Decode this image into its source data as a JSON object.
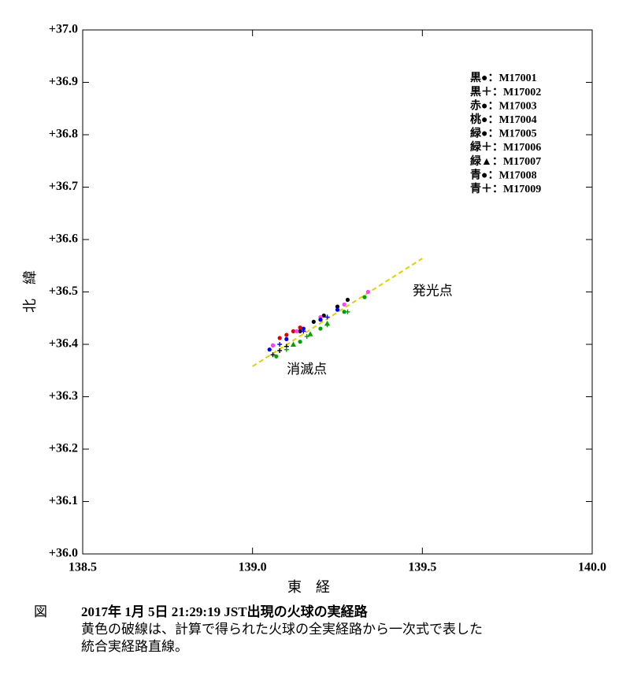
{
  "chart_data": {
    "type": "scatter",
    "x_label": "東　経",
    "y_label": "北　緯",
    "xlim": [
      138.5,
      140.0
    ],
    "ylim": [
      36.0,
      37.0
    ],
    "xticks": [
      138.5,
      {
        "value": 139,
        "label": "139.0"
      },
      139.5,
      {
        "value": 140,
        "label": "140.0"
      }
    ],
    "yticks": [
      {
        "value": 36.0,
        "label": "+36.0"
      },
      {
        "value": 36.1,
        "label": "+36.1"
      },
      {
        "value": 36.2,
        "label": "+36.2"
      },
      {
        "value": 36.3,
        "label": "+36.3"
      },
      {
        "value": 36.4,
        "label": "+36.4"
      },
      {
        "value": 36.5,
        "label": "+36.5"
      },
      {
        "value": 36.6,
        "label": "+36.6"
      },
      {
        "value": 36.7,
        "label": "+36.7"
      },
      {
        "value": 36.8,
        "label": "+36.8"
      },
      {
        "value": 36.9,
        "label": "+36.9"
      },
      {
        "value": 37.0,
        "label": "+37.0"
      }
    ],
    "fit_line": {
      "color": "#e0d000",
      "x": [
        139.0,
        139.5
      ],
      "y": [
        36.358,
        36.564
      ]
    },
    "annotations": [
      {
        "text": "発光点",
        "x": 139.53,
        "y": 36.5
      },
      {
        "text": "消滅点",
        "x": 139.16,
        "y": 36.35
      }
    ],
    "series": [
      {
        "name": "黒●：M17001",
        "color": "#000000",
        "marker": "circle",
        "x": [
          139.14,
          139.18,
          139.21,
          139.25,
          139.28
        ],
        "values": [
          36.425,
          36.443,
          36.455,
          36.472,
          36.485
        ]
      },
      {
        "name": "黒＋：M17002",
        "color": "#000000",
        "marker": "plus",
        "x": [
          139.06,
          139.08,
          139.1
        ],
        "values": [
          36.38,
          36.388,
          36.396
        ]
      },
      {
        "name": "赤●：M17003",
        "color": "#e00000",
        "marker": "circle",
        "x": [
          139.06,
          139.08,
          139.1,
          139.12,
          139.14
        ],
        "values": [
          36.398,
          36.412,
          36.418,
          36.425,
          36.432
        ]
      },
      {
        "name": "桃●：M17004",
        "color": "#ff40ff",
        "marker": "circle",
        "x": [
          139.06,
          139.13,
          139.2,
          139.27,
          139.34
        ],
        "values": [
          36.398,
          36.425,
          36.452,
          36.476,
          36.5
        ]
      },
      {
        "name": "緑●：M17005",
        "color": "#00a000",
        "marker": "circle",
        "x": [
          139.07,
          139.14,
          139.2,
          139.27,
          139.33
        ],
        "values": [
          36.377,
          36.405,
          36.43,
          36.462,
          36.49
        ]
      },
      {
        "name": "緑＋：M17006",
        "color": "#00a000",
        "marker": "plus",
        "x": [
          139.1,
          139.16,
          139.22,
          139.28
        ],
        "values": [
          36.39,
          36.415,
          36.437,
          36.462
        ]
      },
      {
        "name": "緑▲：M17007",
        "color": "#00a000",
        "marker": "triangle",
        "x": [
          139.12,
          139.17,
          139.22
        ],
        "values": [
          36.4,
          36.42,
          36.44
        ]
      },
      {
        "name": "青●：M17008",
        "color": "#0000ff",
        "marker": "circle",
        "x": [
          139.05,
          139.1,
          139.15,
          139.2,
          139.25
        ],
        "values": [
          36.39,
          36.41,
          36.43,
          36.447,
          36.466
        ]
      },
      {
        "name": "青＋：M17009",
        "color": "#0000ff",
        "marker": "plus",
        "x": [
          139.08,
          139.15,
          139.22
        ],
        "values": [
          36.4,
          36.425,
          36.452
        ]
      }
    ]
  },
  "caption": {
    "label": "図",
    "lines": [
      "2017年 1月 5日 21:29:19 JST出現の火球の実経路",
      "黄色の破線は、計算で得られた火球の全実経路から一次式で表した",
      "統合実経路直線。"
    ]
  }
}
